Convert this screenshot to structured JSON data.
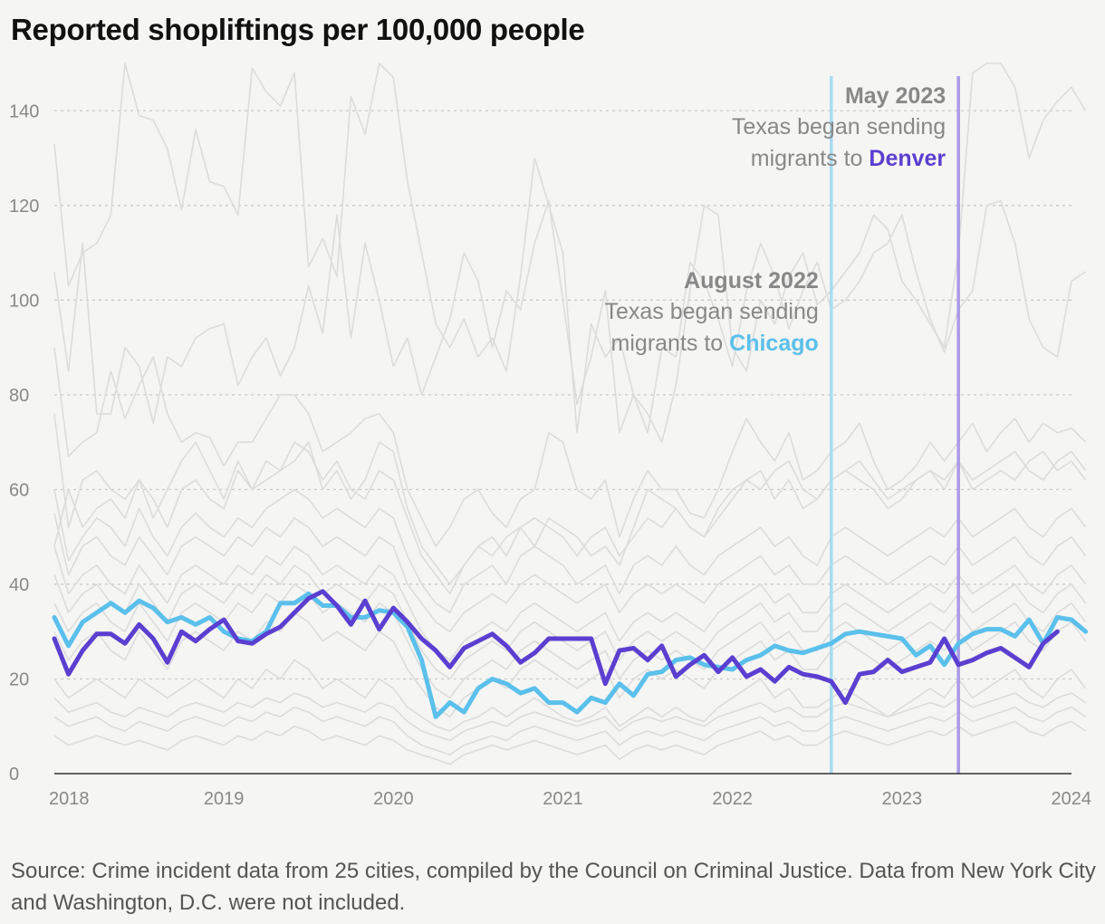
{
  "title": "Reported shopliftings per 100,000 people",
  "source": "Source: Crime incident data from 25 cities, compiled by the Council on Criminal Justice. Data from New York City and Washington, D.C. were not included.",
  "annotations": [
    {
      "date": 2022.583,
      "heading": "August 2022",
      "line1": "Texas began sending",
      "line2_prefix": "migrants to ",
      "city": "Chicago",
      "color": "#5bc0eb",
      "line_color": "#a9dcf2"
    },
    {
      "date": 2023.333,
      "heading": "May 2023",
      "line1": "Texas began sending",
      "line2_prefix": "migrants to ",
      "city": "Denver",
      "color": "#5a3fd0",
      "line_color": "#a99ae6"
    }
  ],
  "chart_data": {
    "type": "line",
    "title": "Reported shopliftings per 100,000 people",
    "xlabel": "",
    "ylabel": "",
    "x_ticks": [
      "2018",
      "2019",
      "2020",
      "2021",
      "2022",
      "2023",
      "2024"
    ],
    "x_range": [
      2018,
      2024
    ],
    "y_ticks": [
      0,
      20,
      40,
      60,
      80,
      100,
      120,
      140
    ],
    "ylim": [
      0,
      150
    ],
    "grid": "horizontal dotted",
    "x_start": 2018.0,
    "x_step": 0.08333,
    "highlight_series": [
      {
        "name": "Chicago",
        "color": "#5bc0eb",
        "values": [
          33,
          27,
          32,
          34,
          36,
          34,
          36.5,
          35,
          32,
          33,
          31.5,
          33,
          30,
          28.5,
          28,
          30,
          36,
          36,
          38,
          35.5,
          35.5,
          33,
          33,
          34.5,
          34,
          31,
          24,
          12,
          15,
          13,
          18,
          20,
          19,
          17,
          18,
          15,
          15,
          13,
          16,
          15,
          19,
          16.5,
          21,
          21.5,
          24,
          24.5,
          23,
          22.5,
          22,
          24,
          25,
          27,
          26,
          25.5,
          26.5,
          27.5,
          29.5,
          30,
          29.5,
          29,
          28.5,
          25,
          27,
          23,
          27.5,
          29.5,
          30.5,
          30.5,
          29,
          32.5,
          27.5,
          33,
          32.5,
          30
        ]
      },
      {
        "name": "Denver",
        "color": "#5a3fd0",
        "values": [
          28.5,
          21,
          26,
          29.5,
          29.5,
          27.5,
          31.5,
          28.5,
          23.5,
          30,
          28,
          30.5,
          32.5,
          28,
          27.5,
          29.5,
          31,
          34,
          37,
          38.5,
          35.5,
          31.5,
          36.5,
          30.5,
          35,
          32,
          28.5,
          26,
          22.5,
          26.5,
          28,
          29.5,
          27,
          23.5,
          25.5,
          28.5,
          28.5,
          28.5,
          28.5,
          19,
          26,
          26.5,
          24,
          27,
          20.5,
          23,
          25,
          21.5,
          24.5,
          20.5,
          22,
          19.5,
          22.5,
          21,
          20.5,
          19.5,
          15,
          21,
          21.5,
          24,
          21.5,
          22.5,
          23.5,
          28.5,
          23,
          24,
          25.5,
          26.5,
          24.5,
          22.5,
          27.5,
          30
        ]
      }
    ],
    "background_series": [
      {
        "values": [
          133,
          103,
          110,
          112,
          118,
          150,
          139,
          138,
          132,
          119,
          136,
          125,
          124,
          118,
          149,
          144,
          141,
          148,
          107,
          113,
          105,
          143,
          135,
          150,
          147,
          125,
          110,
          95,
          90,
          96,
          88,
          92,
          85,
          105,
          130,
          120,
          110,
          72,
          95,
          88,
          92,
          80,
          76,
          70,
          82,
          102,
          120,
          118,
          90,
          85,
          100,
          95,
          105,
          110,
          99,
          102,
          106,
          110,
          118,
          115,
          104,
          100,
          95,
          90,
          110,
          148,
          150,
          152,
          145,
          130,
          138,
          142,
          145,
          140
        ]
      },
      {
        "values": [
          106,
          85,
          112,
          76,
          76,
          90,
          86,
          74,
          88,
          86,
          92,
          94,
          95,
          82,
          88,
          92,
          84,
          90,
          103,
          93,
          118,
          92,
          112,
          100,
          86,
          92,
          80,
          88,
          96,
          110,
          104,
          90,
          102,
          98,
          112,
          121,
          100,
          78,
          88,
          102,
          72,
          80,
          72,
          90,
          88,
          108,
          104,
          96,
          86,
          102,
          112,
          105,
          94,
          102,
          108,
          98,
          100,
          104,
          110,
          112,
          118,
          106,
          96,
          89,
          98,
          102,
          120,
          121,
          112,
          96,
          90,
          88,
          104,
          106
        ]
      },
      {
        "values": [
          90,
          67,
          70,
          72,
          85,
          75,
          82,
          88,
          76,
          70,
          72,
          71,
          65,
          70,
          70,
          75,
          80,
          80,
          76,
          68,
          70,
          72,
          75,
          76,
          72,
          60,
          54,
          48,
          52,
          58,
          60,
          55,
          52,
          58,
          60,
          72,
          70,
          60,
          58,
          62,
          50,
          58,
          64,
          60,
          60,
          55,
          54,
          60,
          68,
          75,
          70,
          66,
          72,
          62,
          64,
          68,
          70,
          74,
          66,
          60,
          62,
          65,
          70,
          66,
          70,
          74,
          68,
          72,
          75,
          70,
          74,
          72,
          73,
          70
        ]
      },
      {
        "values": [
          76,
          52,
          62,
          64,
          60,
          58,
          62,
          54,
          60,
          66,
          70,
          64,
          58,
          66,
          60,
          62,
          64,
          66,
          70,
          60,
          64,
          58,
          62,
          70,
          68,
          56,
          48,
          44,
          40,
          44,
          48,
          46,
          50,
          52,
          48,
          54,
          52,
          50,
          46,
          48,
          44,
          52,
          60,
          58,
          56,
          52,
          50,
          54,
          58,
          62,
          60,
          64,
          66,
          60,
          58,
          62,
          64,
          66,
          62,
          58,
          60,
          62,
          64,
          60,
          66,
          60,
          62,
          64,
          62,
          66,
          68,
          64,
          66,
          62
        ]
      },
      {
        "values": [
          60,
          45,
          50,
          54,
          52,
          48,
          56,
          50,
          46,
          52,
          55,
          52,
          50,
          54,
          52,
          56,
          58,
          60,
          58,
          54,
          56,
          54,
          52,
          56,
          54,
          46,
          40,
          36,
          34,
          40,
          42,
          44,
          40,
          46,
          48,
          46,
          44,
          40,
          42,
          44,
          38,
          44,
          46,
          44,
          48,
          44,
          42,
          46,
          48,
          50,
          52,
          48,
          50,
          46,
          44,
          50,
          52,
          50,
          48,
          46,
          48,
          50,
          52,
          50,
          54,
          50,
          52,
          54,
          56,
          52,
          50,
          54,
          56,
          52
        ]
      },
      {
        "values": [
          55,
          42,
          48,
          50,
          46,
          44,
          50,
          46,
          42,
          48,
          50,
          48,
          46,
          50,
          48,
          52,
          50,
          54,
          52,
          48,
          50,
          48,
          46,
          50,
          48,
          40,
          36,
          32,
          30,
          34,
          36,
          38,
          36,
          40,
          42,
          40,
          38,
          36,
          38,
          40,
          34,
          38,
          40,
          38,
          40,
          38,
          36,
          40,
          42,
          44,
          46,
          42,
          44,
          40,
          40,
          44,
          46,
          44,
          42,
          40,
          42,
          44,
          46,
          44,
          48,
          44,
          46,
          48,
          50,
          46,
          44,
          48,
          50,
          46
        ]
      },
      {
        "values": [
          48,
          38,
          42,
          44,
          40,
          38,
          44,
          40,
          36,
          42,
          44,
          42,
          40,
          44,
          42,
          46,
          44,
          48,
          46,
          42,
          44,
          42,
          40,
          44,
          42,
          36,
          30,
          26,
          24,
          28,
          30,
          32,
          30,
          34,
          36,
          34,
          32,
          30,
          32,
          34,
          28,
          32,
          34,
          32,
          34,
          32,
          30,
          34,
          36,
          38,
          40,
          36,
          38,
          34,
          34,
          38,
          40,
          38,
          36,
          34,
          36,
          38,
          40,
          38,
          42,
          38,
          40,
          42,
          44,
          40,
          38,
          42,
          44,
          40
        ]
      },
      {
        "values": [
          42,
          34,
          38,
          40,
          36,
          34,
          40,
          36,
          32,
          38,
          40,
          38,
          36,
          40,
          38,
          42,
          40,
          44,
          42,
          38,
          40,
          38,
          36,
          40,
          38,
          32,
          26,
          22,
          20,
          24,
          26,
          28,
          26,
          30,
          32,
          30,
          28,
          26,
          28,
          30,
          24,
          28,
          30,
          28,
          30,
          28,
          26,
          30,
          32,
          34,
          36,
          32,
          34,
          30,
          30,
          34,
          36,
          34,
          32,
          30,
          32,
          34,
          36,
          34,
          38,
          34,
          36,
          38,
          40,
          36,
          34,
          38,
          40,
          36
        ]
      },
      {
        "values": [
          36,
          30,
          34,
          36,
          32,
          30,
          36,
          32,
          28,
          34,
          36,
          34,
          32,
          36,
          34,
          38,
          36,
          40,
          38,
          34,
          36,
          34,
          32,
          36,
          34,
          28,
          22,
          18,
          16,
          20,
          22,
          24,
          22,
          26,
          28,
          26,
          24,
          22,
          24,
          26,
          20,
          24,
          26,
          24,
          26,
          24,
          22,
          26,
          28,
          30,
          32,
          28,
          30,
          26,
          26,
          30,
          32,
          30,
          28,
          26,
          28,
          30,
          32,
          30,
          34,
          30,
          32,
          34,
          36,
          32,
          30,
          34,
          36,
          32
        ]
      },
      {
        "values": [
          30,
          24,
          28,
          30,
          26,
          24,
          30,
          26,
          22,
          28,
          30,
          28,
          26,
          30,
          28,
          32,
          30,
          34,
          32,
          28,
          30,
          28,
          26,
          30,
          28,
          22,
          18,
          14,
          12,
          16,
          18,
          20,
          18,
          22,
          24,
          22,
          20,
          18,
          20,
          22,
          16,
          20,
          22,
          20,
          22,
          20,
          18,
          22,
          24,
          26,
          28,
          24,
          26,
          22,
          22,
          26,
          28,
          26,
          24,
          22,
          24,
          26,
          28,
          26,
          30,
          26,
          28,
          30,
          32,
          28,
          26,
          30,
          32,
          28
        ]
      },
      {
        "values": [
          16,
          13,
          14,
          15,
          13,
          12,
          14,
          13,
          12,
          14,
          15,
          14,
          13,
          15,
          14,
          16,
          15,
          17,
          16,
          14,
          15,
          14,
          13,
          15,
          14,
          11,
          9,
          8,
          7,
          9,
          10,
          11,
          10,
          12,
          13,
          12,
          11,
          10,
          11,
          12,
          9,
          11,
          12,
          11,
          12,
          11,
          10,
          12,
          13,
          14,
          15,
          13,
          14,
          12,
          12,
          14,
          15,
          14,
          13,
          12,
          13,
          14,
          15,
          14,
          16,
          14,
          15,
          16,
          17,
          15,
          14,
          16,
          17,
          15
        ]
      },
      {
        "values": [
          12,
          10,
          11,
          12,
          10,
          9,
          11,
          10,
          9,
          11,
          12,
          11,
          10,
          12,
          11,
          13,
          12,
          14,
          13,
          11,
          12,
          11,
          10,
          12,
          11,
          8,
          6,
          5,
          4,
          6,
          7,
          8,
          7,
          9,
          10,
          9,
          8,
          7,
          8,
          9,
          6,
          8,
          9,
          8,
          9,
          8,
          7,
          9,
          10,
          11,
          12,
          10,
          11,
          9,
          9,
          11,
          12,
          11,
          10,
          9,
          10,
          11,
          12,
          11,
          13,
          11,
          12,
          13,
          14,
          12,
          11,
          13,
          14,
          12
        ]
      },
      {
        "values": [
          8,
          6,
          7,
          8,
          7,
          6,
          7,
          6,
          5,
          7,
          8,
          7,
          6,
          8,
          7,
          9,
          8,
          10,
          9,
          7,
          8,
          7,
          6,
          8,
          7,
          5,
          4,
          3,
          2,
          4,
          5,
          6,
          5,
          6,
          7,
          6,
          5,
          4,
          5,
          6,
          3,
          5,
          6,
          5,
          6,
          5,
          4,
          6,
          7,
          8,
          9,
          7,
          8,
          6,
          6,
          8,
          9,
          8,
          7,
          6,
          7,
          8,
          9,
          8,
          10,
          8,
          9,
          10,
          11,
          9,
          8,
          10,
          11,
          9
        ]
      },
      {
        "values": [
          48,
          60,
          52,
          56,
          58,
          54,
          62,
          58,
          52,
          60,
          62,
          58,
          56,
          64,
          60,
          66,
          64,
          70,
          68,
          62,
          66,
          60,
          58,
          64,
          62,
          54,
          46,
          42,
          38,
          44,
          48,
          50,
          46,
          52,
          54,
          52,
          50,
          46,
          50,
          52,
          46,
          50,
          54,
          52,
          56,
          52,
          50,
          56,
          60,
          62,
          64,
          58,
          62,
          56,
          58,
          62,
          64,
          62,
          60,
          56,
          58,
          62,
          64,
          62,
          66,
          62,
          64,
          66,
          68,
          64,
          62,
          66,
          68,
          64
        ]
      },
      {
        "values": [
          20,
          16,
          18,
          20,
          18,
          16,
          20,
          18,
          16,
          18,
          20,
          18,
          16,
          20,
          18,
          22,
          20,
          24,
          22,
          18,
          20,
          18,
          16,
          20,
          18,
          14,
          12,
          10,
          9,
          11,
          12,
          14,
          12,
          14,
          16,
          14,
          12,
          11,
          12,
          14,
          10,
          12,
          14,
          12,
          14,
          12,
          11,
          14,
          16,
          18,
          20,
          16,
          18,
          14,
          14,
          16,
          18,
          16,
          14,
          12,
          14,
          16,
          18,
          16,
          20,
          16,
          18,
          20,
          22,
          18,
          16,
          20,
          22,
          18
        ]
      }
    ]
  }
}
